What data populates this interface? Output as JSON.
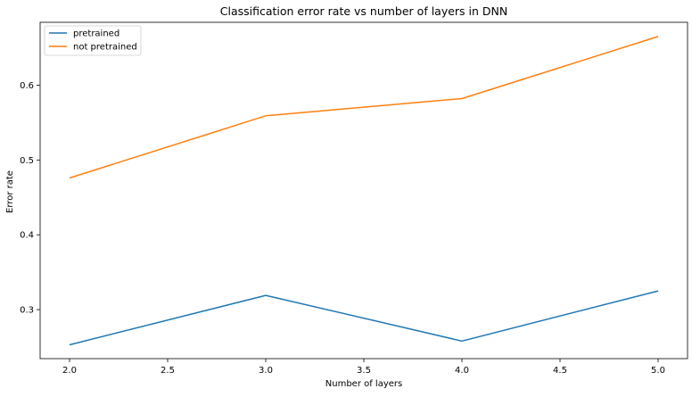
{
  "chart_data": {
    "type": "line",
    "title": "Classification error rate vs number of layers in DNN",
    "xlabel": "Number of layers",
    "ylabel": "Error rate",
    "x": [
      2,
      3,
      4,
      5
    ],
    "xlim": [
      1.85,
      5.15
    ],
    "ylim": [
      0.2345,
      0.684
    ],
    "xticks": [
      2.0,
      2.5,
      3.0,
      3.5,
      4.0,
      4.5,
      5.0
    ],
    "xtick_labels": [
      "2.0",
      "2.5",
      "3.0",
      "3.5",
      "4.0",
      "4.5",
      "5.0"
    ],
    "yticks": [
      0.3,
      0.4,
      0.5,
      0.6
    ],
    "ytick_labels": [
      "0.3",
      "0.4",
      "0.5",
      "0.6"
    ],
    "grid": false,
    "legend_position": "top-left",
    "series": [
      {
        "name": "pretrained",
        "color": "#1f77b4",
        "values": [
          0.253,
          0.319,
          0.258,
          0.325
        ]
      },
      {
        "name": "not pretrained",
        "color": "#ff7f0e",
        "values": [
          0.476,
          0.559,
          0.582,
          0.665
        ]
      }
    ]
  }
}
